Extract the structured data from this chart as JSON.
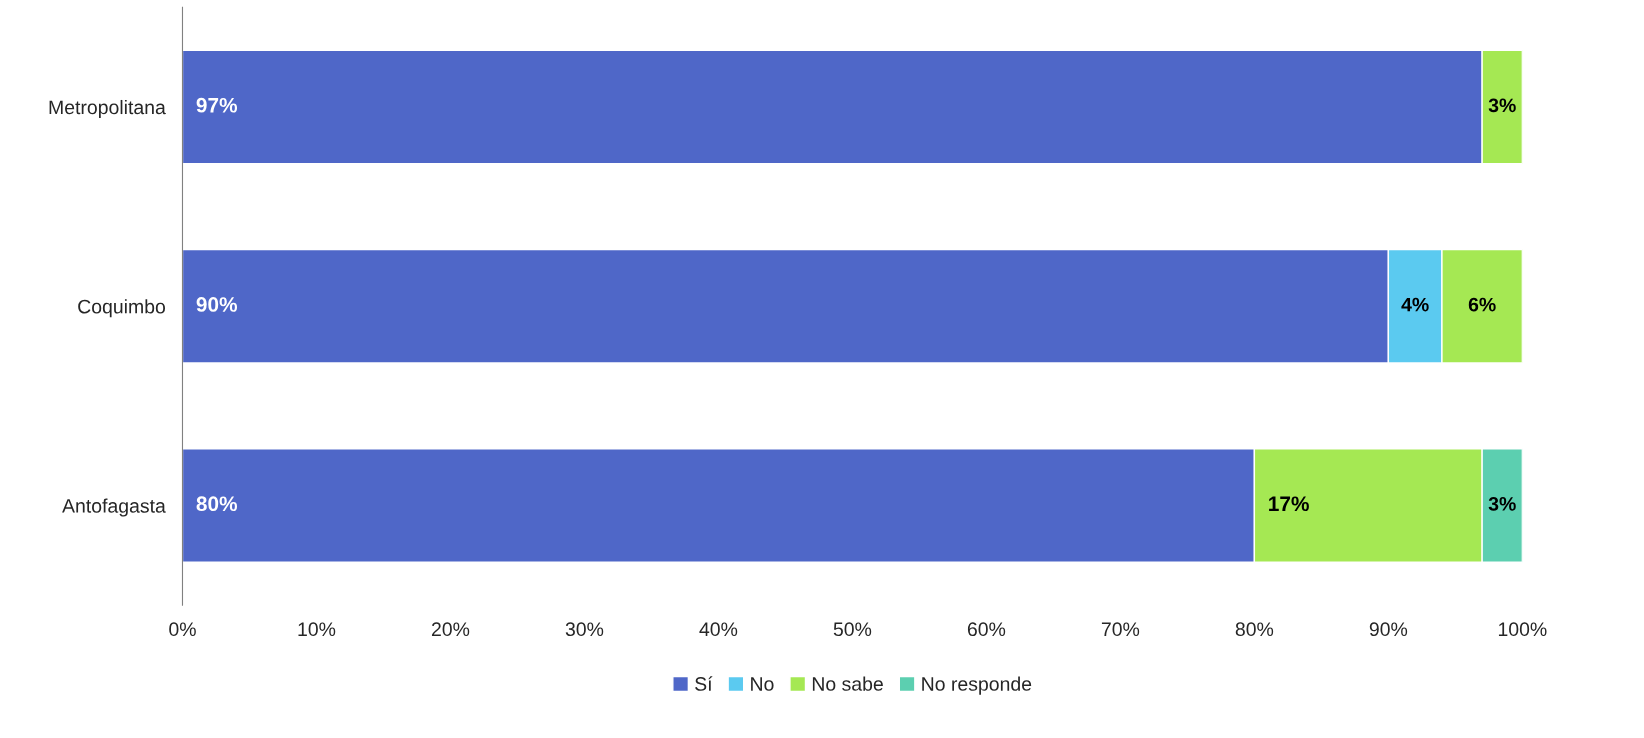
{
  "chart_data": {
    "type": "bar",
    "orientation": "horizontal",
    "stacked": true,
    "categories": [
      "Metropolitana",
      "Coquimbo",
      "Antofagasta"
    ],
    "series": [
      {
        "name": "Sí",
        "color": "#4f67c8",
        "values": [
          97,
          90,
          80
        ],
        "value_labels": [
          "97%",
          "90%",
          "80%"
        ]
      },
      {
        "name": "No",
        "color": "#5bcaf0",
        "values": [
          null,
          4,
          null
        ],
        "value_labels": [
          null,
          "4%",
          null
        ]
      },
      {
        "name": "No sabe",
        "color": "#a5e853",
        "values": [
          3,
          6,
          17
        ],
        "value_labels": [
          "3%",
          "6%",
          "17%"
        ]
      },
      {
        "name": "No responde",
        "color": "#5ccfb0",
        "values": [
          null,
          null,
          3
        ],
        "value_labels": [
          null,
          null,
          "3%"
        ]
      }
    ],
    "xlim": [
      0,
      100
    ],
    "xticks": [
      {
        "value": 0,
        "label": "0%"
      },
      {
        "value": 10,
        "label": "10%"
      },
      {
        "value": 20,
        "label": "20%"
      },
      {
        "value": 30,
        "label": "30%"
      },
      {
        "value": 40,
        "label": "40%"
      },
      {
        "value": 50,
        "label": "50%"
      },
      {
        "value": 60,
        "label": "60%"
      },
      {
        "value": 70,
        "label": "70%"
      },
      {
        "value": 80,
        "label": "80%"
      },
      {
        "value": 90,
        "label": "90%"
      },
      {
        "value": 100,
        "label": "100%"
      }
    ],
    "grid": false,
    "legend": "bottom"
  }
}
